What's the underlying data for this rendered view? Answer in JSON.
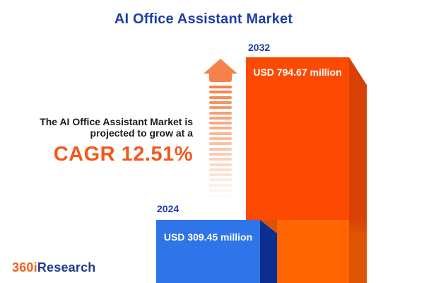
{
  "title": "AI Office Assistant Market",
  "growth_text": {
    "line1": "The AI Office Assistant Market is",
    "line2": "projected to grow at a"
  },
  "cagr_text": "CAGR 12.51%",
  "logo": {
    "part1": "360i",
    "part2": "Research"
  },
  "colors": {
    "title_blue": "#1E3FA3",
    "accent_orange": "#F4571D",
    "arrow_orange": "#F5824B",
    "bar_2024_face": "#2F74E8",
    "bar_2024_side": "#0A2F91",
    "bar_2032_face_top": "#FC4A03",
    "bar_2032_face_bottom": "#FF6602",
    "bar_2032_side_top": "#D84105",
    "bar_2032_side_bottom": "#DE5502",
    "logo_orange": "#F26322",
    "logo_blue": "#1E3B8E"
  },
  "chart_data": {
    "type": "bar",
    "title": "AI Office Assistant Market",
    "categories": [
      "2024",
      "2032"
    ],
    "values": [
      309.45,
      794.67
    ],
    "unit": "USD million",
    "value_labels": [
      "USD 309.45 million",
      "USD 794.67 million"
    ],
    "cagr_percent": 12.51,
    "series_colors": [
      "#2F74E8",
      "#FC4A03"
    ],
    "legend": "none",
    "axes": "none",
    "style": "3d-infographic-columns"
  }
}
